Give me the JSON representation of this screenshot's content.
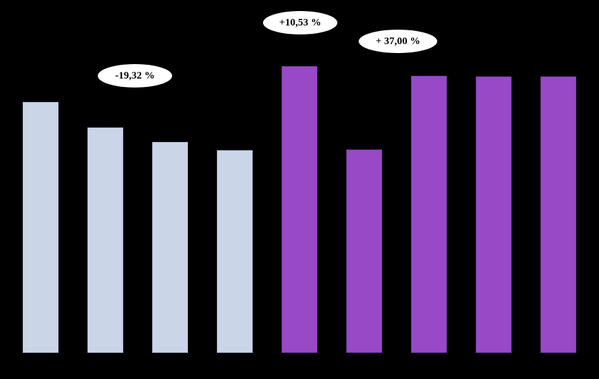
{
  "chart_data": {
    "type": "bar",
    "title": "",
    "xlabel": "",
    "ylabel": "",
    "ylim": [
      0,
      100
    ],
    "grid": false,
    "legend": false,
    "background": "#000000",
    "values": [
      87.5,
      78.6,
      73.6,
      70.7,
      100,
      70.9,
      96.6,
      96.4,
      96.4
    ],
    "colors": [
      "light",
      "light",
      "light",
      "light",
      "purple",
      "purple",
      "purple",
      "purple",
      "purple"
    ],
    "palette": {
      "light": "#cbd5e8",
      "purple": "#9749c6"
    },
    "palette_border": {
      "light": "#aab8d2",
      "purple": "#7d3aa8"
    },
    "annotations": [
      {
        "text": "-19,32 %",
        "near_bar_index": 2
      },
      {
        "text": "+10,53 %",
        "near_bar_index": 4
      },
      {
        "text": "+ 37,00 %",
        "near_bar_index": 5
      }
    ]
  }
}
